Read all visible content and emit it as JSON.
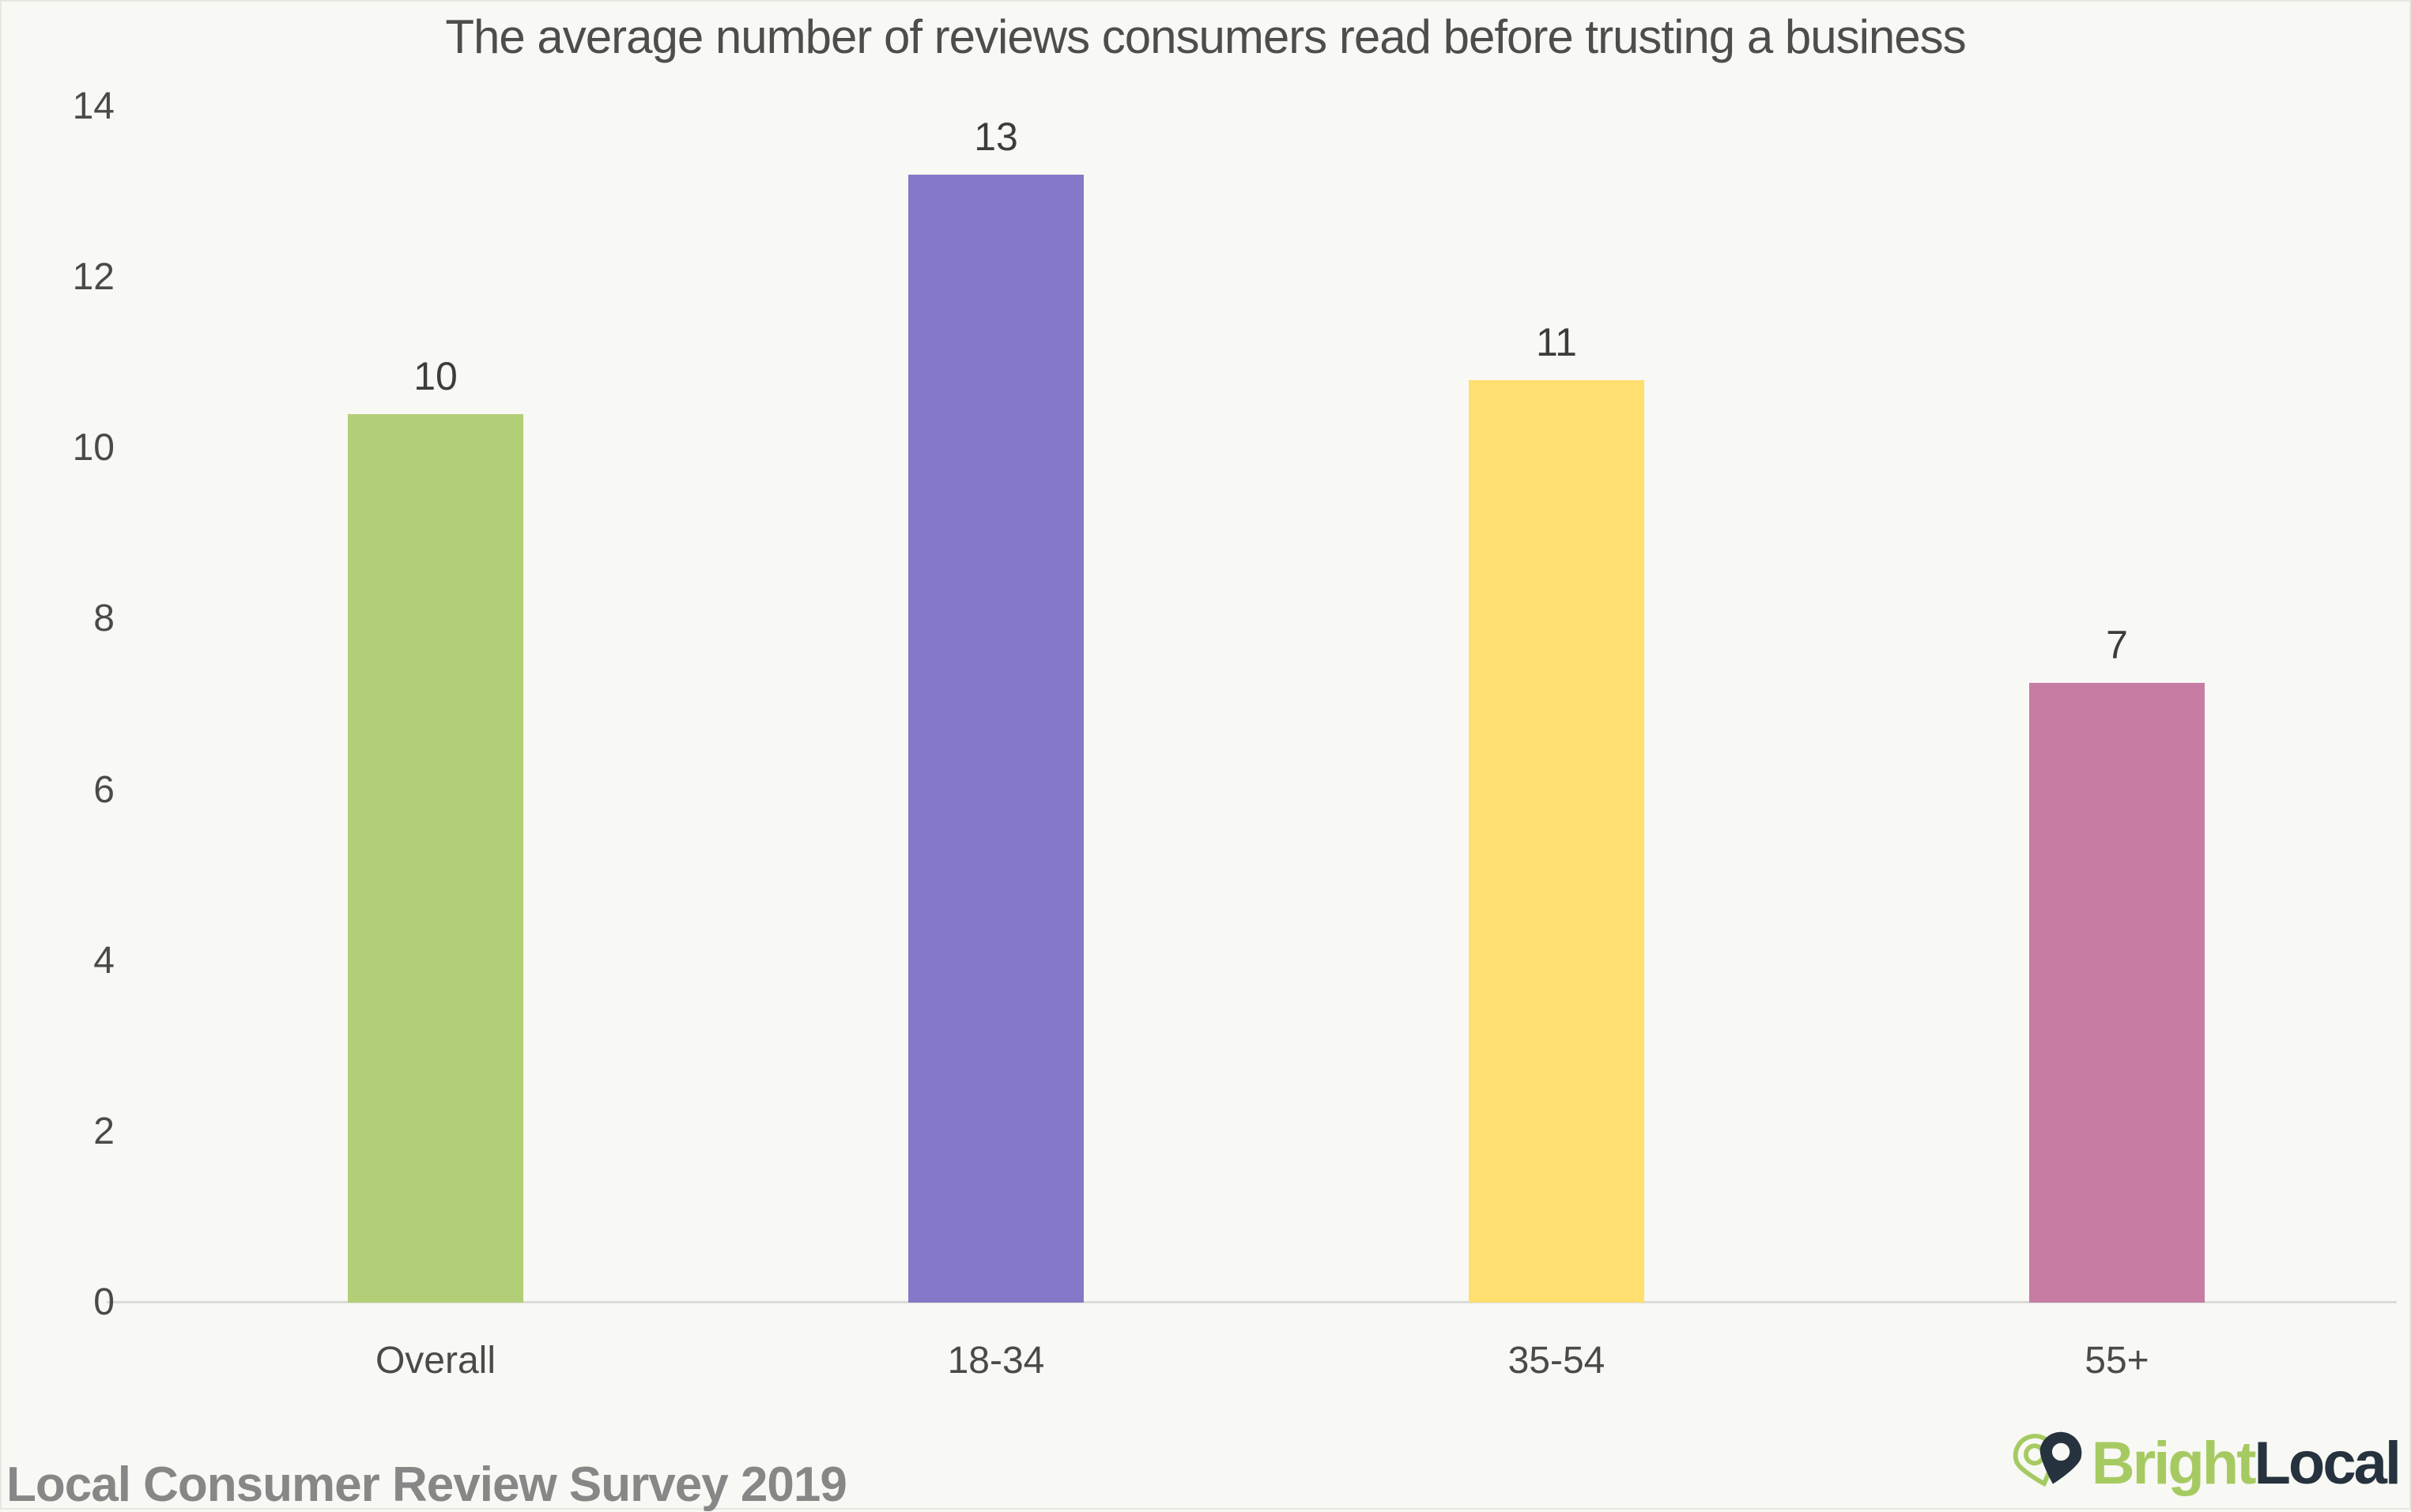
{
  "chart_data": {
    "type": "bar",
    "title": "The average number of reviews consumers read before trusting a business",
    "categories": [
      "Overall",
      "18-34",
      "35-54",
      "55+"
    ],
    "values": [
      10,
      13,
      11,
      7
    ],
    "bar_heights_exact": [
      10.4,
      13.2,
      10.8,
      7.25
    ],
    "bar_colors": [
      "#b2cf77",
      "#8578c8",
      "#fedf70",
      "#c77ca3"
    ],
    "xlabel": "",
    "ylabel": "",
    "ylim": [
      0,
      14
    ],
    "yticks": [
      0,
      2,
      4,
      6,
      8,
      10,
      12,
      14
    ],
    "grid": false,
    "legend": false,
    "value_labels_shown": true
  },
  "footer": {
    "source": "Local Consumer Review Survey 2019"
  },
  "logo": {
    "text_green": "Bright",
    "text_dark": "Local"
  },
  "colors": {
    "background": "#f8f8f4",
    "axis_line": "#dbdbd7",
    "title_text": "#4d4d4d",
    "tick_text": "#4a4a4a",
    "value_label_text": "#3c3c3c",
    "source_text": "#878787",
    "logo_green": "#a6ca62",
    "logo_dark": "#26323e"
  }
}
